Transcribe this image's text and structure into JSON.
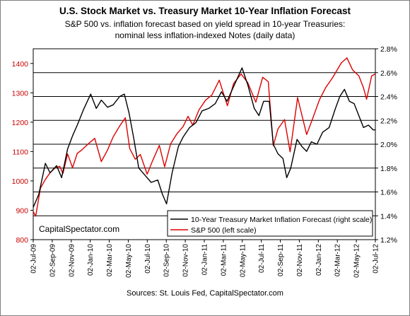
{
  "chart_data": {
    "type": "line",
    "title": "U.S. Stock Market vs. Treasury Market 10-Year Inflation Forecast",
    "subtitle_lines": [
      "S&P 500 vs. inflation forecast based on yield spread in 10-year Treasuries:",
      "nominal less inflation-indexed Notes (daily data)"
    ],
    "watermark": "CapitalSpectator.com",
    "source": "Sources: St. Louis Fed, CapitalSpectator.com",
    "grid": true,
    "legend_position": "bottom-right",
    "x_axis": {
      "type": "date",
      "range": [
        "2009-07-02",
        "2012-07-02"
      ],
      "tick_labels": [
        "02-Jul-09",
        "02-Sep-09",
        "02-Nov-09",
        "02-Jan-10",
        "02-Mar-10",
        "02-May-10",
        "02-Jul-10",
        "02-Sep-10",
        "02-Nov-10",
        "02-Jan-11",
        "02-Mar-11",
        "02-May-11",
        "02-Jul-11",
        "02-Sep-11",
        "02-Nov-11",
        "02-Jan-12",
        "02-Mar-12",
        "02-May-12",
        "02-Jul-12"
      ]
    },
    "y_left": {
      "range": [
        800,
        1450
      ],
      "ticks": [
        800,
        900,
        1000,
        1100,
        1200,
        1300,
        1400
      ],
      "tick_labels": [
        "800",
        "900",
        "1000",
        "1100",
        "1200",
        "1300",
        "1400"
      ],
      "color": "#cc0000"
    },
    "y_right": {
      "range": [
        1.2,
        2.8
      ],
      "ticks": [
        1.2,
        1.4,
        1.6,
        1.8,
        2.0,
        2.2,
        2.4,
        2.6,
        2.8
      ],
      "tick_labels": [
        "1.2%",
        "1.4%",
        "1.6%",
        "1.8%",
        "2.0%",
        "2.2%",
        "2.4%",
        "2.6%",
        "2.8%"
      ]
    },
    "series": [
      {
        "name": "10-Year Treasury Market Inflation Forecast (right scale)",
        "axis": "right",
        "color": "#000000",
        "points": [
          [
            "2009-07-02",
            1.47
          ],
          [
            "2009-07-20",
            1.58
          ],
          [
            "2009-08-10",
            1.84
          ],
          [
            "2009-08-25",
            1.76
          ],
          [
            "2009-09-15",
            1.82
          ],
          [
            "2009-10-01",
            1.72
          ],
          [
            "2009-10-20",
            1.96
          ],
          [
            "2009-11-05",
            2.07
          ],
          [
            "2009-11-20",
            2.16
          ],
          [
            "2009-12-10",
            2.29
          ],
          [
            "2010-01-02",
            2.42
          ],
          [
            "2010-01-20",
            2.3
          ],
          [
            "2010-02-05",
            2.37
          ],
          [
            "2010-02-25",
            2.31
          ],
          [
            "2010-03-15",
            2.33
          ],
          [
            "2010-04-05",
            2.4
          ],
          [
            "2010-04-20",
            2.42
          ],
          [
            "2010-05-05",
            2.26
          ],
          [
            "2010-05-20",
            2.05
          ],
          [
            "2010-06-05",
            1.8
          ],
          [
            "2010-06-25",
            1.74
          ],
          [
            "2010-07-15",
            1.68
          ],
          [
            "2010-08-05",
            1.7
          ],
          [
            "2010-08-20",
            1.58
          ],
          [
            "2010-09-02",
            1.5
          ],
          [
            "2010-09-20",
            1.76
          ],
          [
            "2010-10-10",
            1.98
          ],
          [
            "2010-10-25",
            2.06
          ],
          [
            "2010-11-15",
            2.14
          ],
          [
            "2010-12-05",
            2.18
          ],
          [
            "2010-12-25",
            2.28
          ],
          [
            "2011-01-15",
            2.3
          ],
          [
            "2011-02-05",
            2.34
          ],
          [
            "2011-02-25",
            2.44
          ],
          [
            "2011-03-15",
            2.36
          ],
          [
            "2011-04-01",
            2.46
          ],
          [
            "2011-04-20",
            2.57
          ],
          [
            "2011-05-02",
            2.64
          ],
          [
            "2011-05-20",
            2.5
          ],
          [
            "2011-06-10",
            2.3
          ],
          [
            "2011-06-25",
            2.24
          ],
          [
            "2011-07-10",
            2.36
          ],
          [
            "2011-07-28",
            2.36
          ],
          [
            "2011-08-10",
            2.0
          ],
          [
            "2011-08-25",
            1.92
          ],
          [
            "2011-09-10",
            1.88
          ],
          [
            "2011-09-22",
            1.72
          ],
          [
            "2011-10-05",
            1.8
          ],
          [
            "2011-10-25",
            2.04
          ],
          [
            "2011-11-10",
            1.98
          ],
          [
            "2011-11-25",
            1.94
          ],
          [
            "2011-12-10",
            2.02
          ],
          [
            "2011-12-28",
            2.0
          ],
          [
            "2012-01-15",
            2.1
          ],
          [
            "2012-02-05",
            2.14
          ],
          [
            "2012-02-25",
            2.3
          ],
          [
            "2012-03-10",
            2.4
          ],
          [
            "2012-03-25",
            2.46
          ],
          [
            "2012-04-10",
            2.36
          ],
          [
            "2012-04-25",
            2.34
          ],
          [
            "2012-05-10",
            2.24
          ],
          [
            "2012-05-25",
            2.14
          ],
          [
            "2012-06-10",
            2.16
          ],
          [
            "2012-06-25",
            2.12
          ],
          [
            "2012-07-02",
            2.12
          ]
        ]
      },
      {
        "name": "S&P 500 (left scale)",
        "axis": "left",
        "color": "#dd0000",
        "points": [
          [
            "2009-07-02",
            896
          ],
          [
            "2009-07-10",
            880
          ],
          [
            "2009-07-25",
            975
          ],
          [
            "2009-08-10",
            1005
          ],
          [
            "2009-08-25",
            1028
          ],
          [
            "2009-09-10",
            1044
          ],
          [
            "2009-09-25",
            1050
          ],
          [
            "2009-10-05",
            1025
          ],
          [
            "2009-10-20",
            1092
          ],
          [
            "2009-11-05",
            1045
          ],
          [
            "2009-11-20",
            1094
          ],
          [
            "2009-12-05",
            1106
          ],
          [
            "2009-12-25",
            1126
          ],
          [
            "2010-01-15",
            1145
          ],
          [
            "2010-02-05",
            1066
          ],
          [
            "2010-02-25",
            1105
          ],
          [
            "2010-03-15",
            1150
          ],
          [
            "2010-04-05",
            1187
          ],
          [
            "2010-04-23",
            1215
          ],
          [
            "2010-05-07",
            1110
          ],
          [
            "2010-05-25",
            1074
          ],
          [
            "2010-06-10",
            1090
          ],
          [
            "2010-07-02",
            1023
          ],
          [
            "2010-07-20",
            1070
          ],
          [
            "2010-08-10",
            1121
          ],
          [
            "2010-08-27",
            1048
          ],
          [
            "2010-09-15",
            1126
          ],
          [
            "2010-10-05",
            1160
          ],
          [
            "2010-10-25",
            1185
          ],
          [
            "2010-11-10",
            1220
          ],
          [
            "2010-11-25",
            1190
          ],
          [
            "2010-12-15",
            1242
          ],
          [
            "2011-01-05",
            1275
          ],
          [
            "2011-01-25",
            1292
          ],
          [
            "2011-02-18",
            1343
          ],
          [
            "2011-03-16",
            1256
          ],
          [
            "2011-04-05",
            1332
          ],
          [
            "2011-04-29",
            1364
          ],
          [
            "2011-05-20",
            1335
          ],
          [
            "2011-06-15",
            1268
          ],
          [
            "2011-07-07",
            1353
          ],
          [
            "2011-07-25",
            1338
          ],
          [
            "2011-08-10",
            1120
          ],
          [
            "2011-08-25",
            1177
          ],
          [
            "2011-09-15",
            1209
          ],
          [
            "2011-10-03",
            1099
          ],
          [
            "2011-10-27",
            1284
          ],
          [
            "2011-11-25",
            1158
          ],
          [
            "2011-12-15",
            1215
          ],
          [
            "2012-01-05",
            1277
          ],
          [
            "2012-01-25",
            1318
          ],
          [
            "2012-02-15",
            1350
          ],
          [
            "2012-03-15",
            1402
          ],
          [
            "2012-04-02",
            1419
          ],
          [
            "2012-04-20",
            1378
          ],
          [
            "2012-05-10",
            1358
          ],
          [
            "2012-05-25",
            1317
          ],
          [
            "2012-06-04",
            1278
          ],
          [
            "2012-06-20",
            1357
          ],
          [
            "2012-07-02",
            1365
          ]
        ]
      }
    ]
  }
}
